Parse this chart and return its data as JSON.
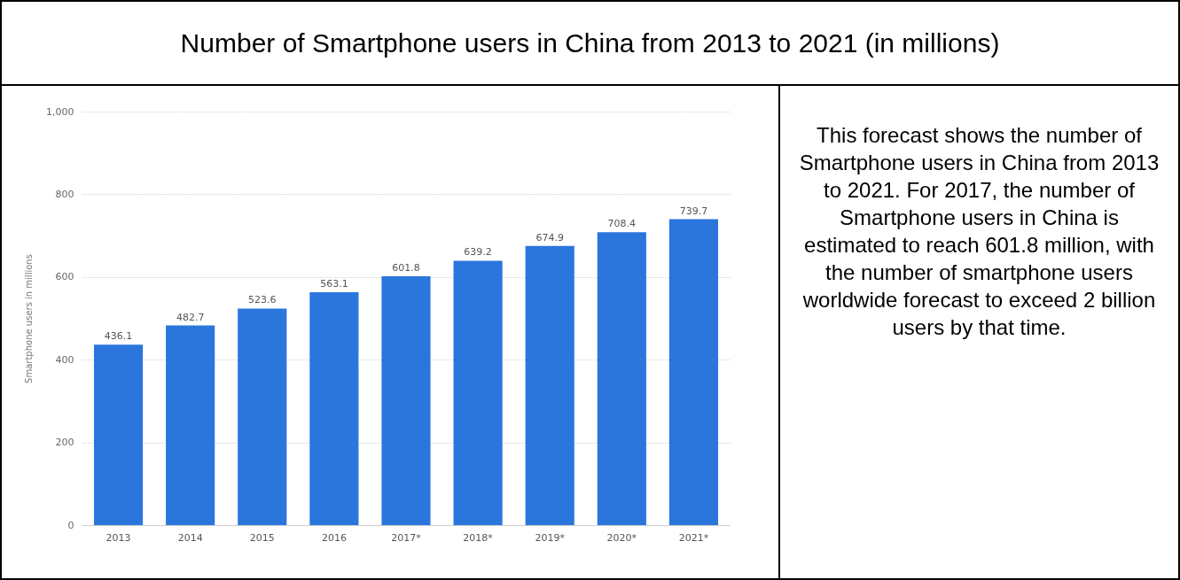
{
  "chart_data": {
    "type": "bar",
    "title": "Number of Smartphone users in China from 2013 to 2021 (in millions)",
    "ylabel": "Smartphone users in millions",
    "categories": [
      "2013",
      "2014",
      "2015",
      "2016",
      "2017*",
      "2018*",
      "2019*",
      "2020*",
      "2021*"
    ],
    "values": [
      436.1,
      482.7,
      523.6,
      563.1,
      601.8,
      639.2,
      674.9,
      708.4,
      739.7
    ],
    "color": "#2a76dd",
    "ylim": [
      0,
      1000
    ],
    "yticks": [
      0,
      200,
      400,
      600,
      800,
      {
        "value": 1000,
        "label": "1,000"
      }
    ],
    "grid": "y",
    "data_labels": true,
    "annotations": [
      "This forecast shows the number of Smartphone users in China from 2013 to 2021. For 2017, the number of Smartphone users in China is estimated to reach 601.8 million, with the number of smartphone users worldwide forecast to exceed 2 billion users by that time."
    ]
  }
}
